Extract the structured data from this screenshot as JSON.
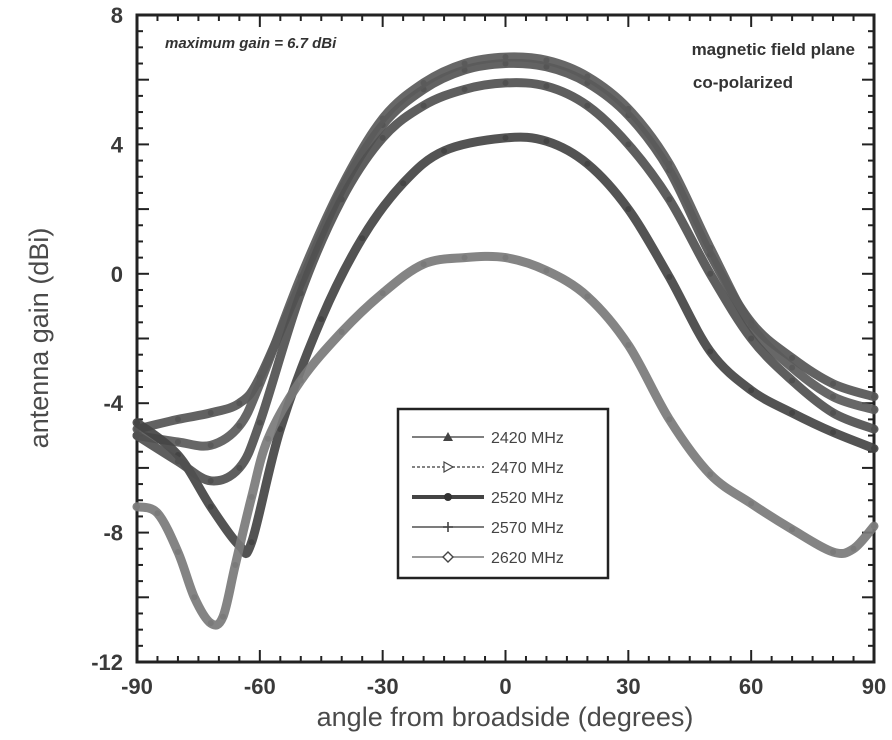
{
  "chart_data": {
    "type": "line",
    "xlabel": "angle from broadside (degrees)",
    "ylabel": "antenna gain (dBi)",
    "xlim": [
      -90,
      90
    ],
    "ylim": [
      -12,
      8
    ],
    "xticks": [
      -90,
      -60,
      -30,
      0,
      30,
      60,
      90
    ],
    "yticks": [
      -12,
      -8,
      -4,
      0,
      4,
      8
    ],
    "grid": false,
    "legend_position": "center-bottom",
    "annotations": {
      "max_gain": "maximum gain = 6.7 dBi",
      "plane_line1": "magnetic field plane",
      "plane_line2": "co-polarized"
    },
    "series": [
      {
        "name": "2420 MHz",
        "color": "#555555",
        "x": [
          -90,
          -80,
          -72,
          -65,
          -60,
          -50,
          -40,
          -30,
          -20,
          -10,
          0,
          10,
          20,
          30,
          40,
          50,
          60,
          70,
          80,
          90
        ],
        "y": [
          -4.8,
          -4.5,
          -4.3,
          -4.0,
          -3.2,
          -0.3,
          2.6,
          4.6,
          5.7,
          6.3,
          6.5,
          6.4,
          5.9,
          4.9,
          3.2,
          0.6,
          -1.5,
          -2.6,
          -3.4,
          -3.8
        ]
      },
      {
        "name": "2470 MHz",
        "color": "#5a5a5a",
        "x": [
          -90,
          -80,
          -72,
          -65,
          -60,
          -50,
          -40,
          -30,
          -20,
          -10,
          0,
          10,
          20,
          30,
          40,
          50,
          60,
          70,
          80,
          90
        ],
        "y": [
          -5.0,
          -5.2,
          -5.3,
          -4.7,
          -3.4,
          -0.1,
          2.7,
          4.8,
          5.9,
          6.5,
          6.7,
          6.6,
          6.1,
          5.1,
          3.4,
          0.8,
          -1.6,
          -2.9,
          -3.8,
          -4.2
        ]
      },
      {
        "name": "2520 MHz",
        "color": "#444444",
        "x": [
          -90,
          -80,
          -72,
          -65,
          -62,
          -55,
          -45,
          -35,
          -25,
          -15,
          0,
          10,
          20,
          30,
          40,
          50,
          60,
          70,
          80,
          90
        ],
        "y": [
          -4.6,
          -5.6,
          -7.2,
          -8.4,
          -8.3,
          -4.8,
          -1.4,
          1.1,
          2.8,
          3.8,
          4.2,
          4.1,
          3.4,
          2.0,
          -0.1,
          -2.4,
          -3.6,
          -4.3,
          -4.9,
          -5.4
        ]
      },
      {
        "name": "2570 MHz",
        "color": "#505050",
        "x": [
          -90,
          -80,
          -72,
          -65,
          -60,
          -50,
          -40,
          -30,
          -20,
          -10,
          0,
          10,
          20,
          30,
          40,
          50,
          60,
          70,
          80,
          90
        ],
        "y": [
          -5.0,
          -5.8,
          -6.4,
          -6.0,
          -4.6,
          -0.6,
          2.3,
          4.2,
          5.2,
          5.7,
          5.9,
          5.8,
          5.2,
          4.0,
          2.3,
          0.0,
          -2.0,
          -3.3,
          -4.3,
          -4.8
        ]
      },
      {
        "name": "2620 MHz",
        "color": "#7a7a7a",
        "x": [
          -90,
          -85,
          -80,
          -76,
          -72,
          -69,
          -66,
          -62,
          -58,
          -50,
          -40,
          -30,
          -20,
          -10,
          0,
          10,
          20,
          30,
          40,
          50,
          60,
          70,
          80,
          85,
          90
        ],
        "y": [
          -7.2,
          -7.4,
          -8.6,
          -10.0,
          -10.8,
          -10.6,
          -9.0,
          -6.9,
          -5.1,
          -3.3,
          -1.8,
          -0.6,
          0.3,
          0.5,
          0.5,
          0.1,
          -0.7,
          -2.2,
          -4.5,
          -6.2,
          -7.1,
          -7.9,
          -8.6,
          -8.5,
          -7.8
        ]
      }
    ]
  }
}
